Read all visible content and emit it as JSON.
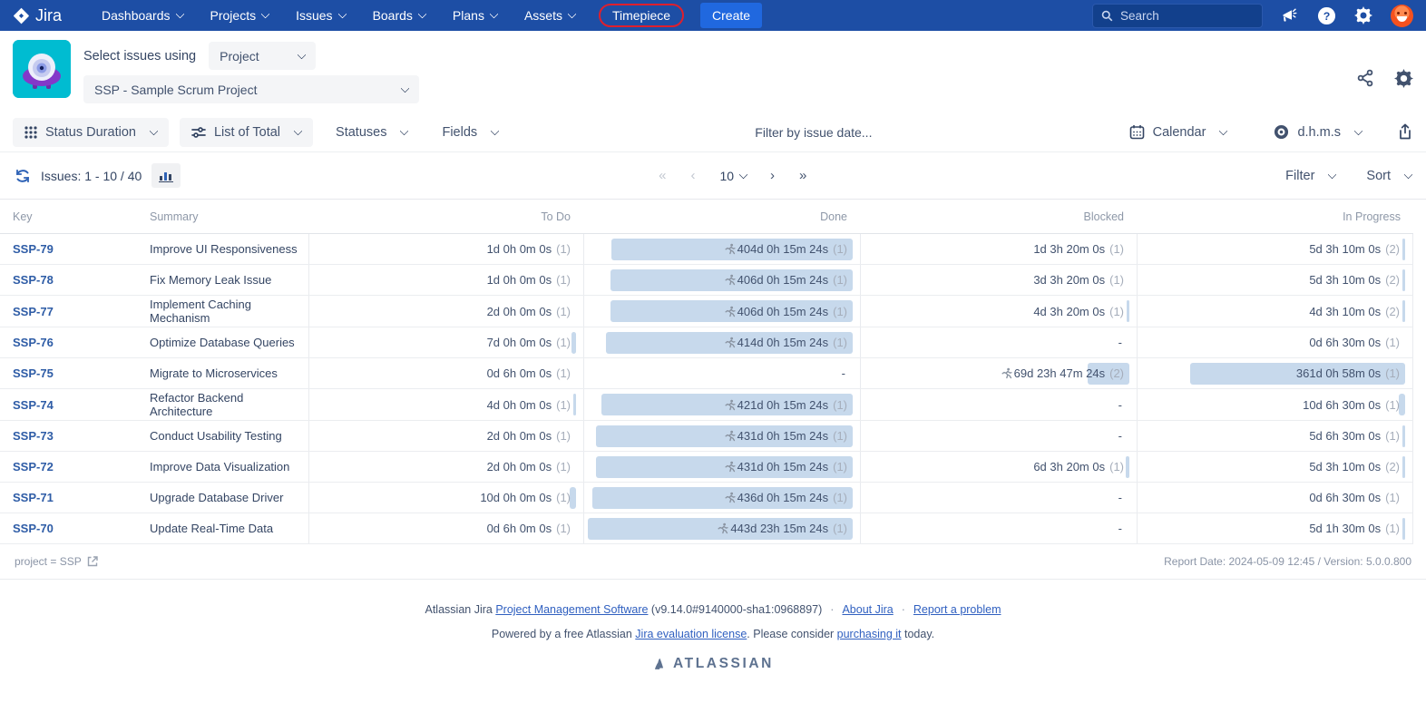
{
  "nav": {
    "brand": "Jira",
    "items": [
      {
        "label": "Dashboards",
        "chevron": true
      },
      {
        "label": "Projects",
        "chevron": true
      },
      {
        "label": "Issues",
        "chevron": true
      },
      {
        "label": "Boards",
        "chevron": true
      },
      {
        "label": "Plans",
        "chevron": true
      },
      {
        "label": "Assets",
        "chevron": true
      },
      {
        "label": "Timepiece",
        "chevron": false,
        "highlighted": true
      }
    ],
    "create_label": "Create",
    "search_placeholder": "Search",
    "annotation_color": "#DF1F2D"
  },
  "header": {
    "select_issues_label": "Select issues using",
    "mode_value": "Project",
    "project_value": "SSP - Sample Scrum Project"
  },
  "toolbar": {
    "report_type": "Status Duration",
    "list_mode": "List of Total",
    "statuses_label": "Statuses",
    "fields_label": "Fields",
    "date_filter_placeholder": "Filter by issue date...",
    "calendar_label": "Calendar",
    "format_label": "d.h.m.s"
  },
  "pagination": {
    "issues_label": "Issues: 1 - 10 / 40",
    "first": "«",
    "prev": "‹",
    "page_size": "10",
    "next": "›",
    "last": "»",
    "filter_label": "Filter",
    "sort_label": "Sort"
  },
  "table": {
    "columns": [
      "Key",
      "Summary",
      "To Do",
      "Done",
      "Blocked",
      "In Progress"
    ],
    "bar_color": "#C7D9EC",
    "max_days": 444,
    "rows": [
      {
        "key": "SSP-79",
        "summary": "Improve UI Responsiveness",
        "todo": {
          "text": "1d 0h 0m 0s",
          "count": "(1)",
          "days": 1.0
        },
        "done": {
          "text": "404d 0h 15m 24s",
          "count": "(1)",
          "days": 404.0,
          "runner": true
        },
        "blocked": {
          "text": "1d 3h 20m 0s",
          "count": "(1)",
          "days": 1.14
        },
        "inprogress": {
          "text": "5d 3h 10m 0s",
          "count": "(2)",
          "days": 5.13
        }
      },
      {
        "key": "SSP-78",
        "summary": "Fix Memory Leak Issue",
        "todo": {
          "text": "1d 0h 0m 0s",
          "count": "(1)",
          "days": 1.0
        },
        "done": {
          "text": "406d 0h 15m 24s",
          "count": "(1)",
          "days": 406.0,
          "runner": true
        },
        "blocked": {
          "text": "3d 3h 20m 0s",
          "count": "(1)",
          "days": 3.14
        },
        "inprogress": {
          "text": "5d 3h 10m 0s",
          "count": "(2)",
          "days": 5.13
        }
      },
      {
        "key": "SSP-77",
        "summary": "Implement Caching\nMechanism",
        "todo": {
          "text": "2d 0h 0m 0s",
          "count": "(1)",
          "days": 2.0
        },
        "done": {
          "text": "406d 0h 15m 24s",
          "count": "(1)",
          "days": 406.0,
          "runner": true
        },
        "blocked": {
          "text": "4d 3h 20m 0s",
          "count": "(1)",
          "days": 4.14
        },
        "inprogress": {
          "text": "4d 3h 10m 0s",
          "count": "(2)",
          "days": 4.13
        }
      },
      {
        "key": "SSP-76",
        "summary": "Optimize Database Queries",
        "todo": {
          "text": "7d 0h 0m 0s",
          "count": "(1)",
          "days": 7.0
        },
        "done": {
          "text": "414d 0h 15m 24s",
          "count": "(1)",
          "days": 414.0,
          "runner": true
        },
        "blocked": {
          "text": "-"
        },
        "inprogress": {
          "text": "0d 6h 30m 0s",
          "count": "(1)",
          "days": 0.27
        }
      },
      {
        "key": "SSP-75",
        "summary": "Migrate to Microservices",
        "todo": {
          "text": "0d 6h 0m 0s",
          "count": "(1)",
          "days": 0.25
        },
        "done": {
          "text": "-"
        },
        "blocked": {
          "text": "69d 23h 47m 24s",
          "count": "(2)",
          "days": 70.0,
          "runner": true
        },
        "inprogress": {
          "text": "361d 0h 58m 0s",
          "count": "(1)",
          "days": 361.04
        }
      },
      {
        "key": "SSP-74",
        "summary": "Refactor Backend Architecture",
        "todo": {
          "text": "4d 0h 0m 0s",
          "count": "(1)",
          "days": 4.0
        },
        "done": {
          "text": "421d 0h 15m 24s",
          "count": "(1)",
          "days": 421.0,
          "runner": true
        },
        "blocked": {
          "text": "-"
        },
        "inprogress": {
          "text": "10d 6h 30m 0s",
          "count": "(1)",
          "days": 10.27
        }
      },
      {
        "key": "SSP-73",
        "summary": "Conduct Usability Testing",
        "todo": {
          "text": "2d 0h 0m 0s",
          "count": "(1)",
          "days": 2.0
        },
        "done": {
          "text": "431d 0h 15m 24s",
          "count": "(1)",
          "days": 431.0,
          "runner": true
        },
        "blocked": {
          "text": "-"
        },
        "inprogress": {
          "text": "5d 6h 30m 0s",
          "count": "(1)",
          "days": 5.27
        }
      },
      {
        "key": "SSP-72",
        "summary": "Improve Data Visualization",
        "todo": {
          "text": "2d 0h 0m 0s",
          "count": "(1)",
          "days": 2.0
        },
        "done": {
          "text": "431d 0h 15m 24s",
          "count": "(1)",
          "days": 431.0,
          "runner": true
        },
        "blocked": {
          "text": "6d 3h 20m 0s",
          "count": "(1)",
          "days": 6.14
        },
        "inprogress": {
          "text": "5d 3h 10m 0s",
          "count": "(2)",
          "days": 5.13
        }
      },
      {
        "key": "SSP-71",
        "summary": "Upgrade Database Driver",
        "todo": {
          "text": "10d 0h 0m 0s",
          "count": "(1)",
          "days": 10.0
        },
        "done": {
          "text": "436d 0h 15m 24s",
          "count": "(1)",
          "days": 436.0,
          "runner": true
        },
        "blocked": {
          "text": "-"
        },
        "inprogress": {
          "text": "0d 6h 30m 0s",
          "count": "(1)",
          "days": 0.27
        }
      },
      {
        "key": "SSP-70",
        "summary": "Update Real-Time Data",
        "todo": {
          "text": "0d 6h 0m 0s",
          "count": "(1)",
          "days": 0.25
        },
        "done": {
          "text": "443d 23h 15m 24s",
          "count": "(1)",
          "days": 443.97,
          "runner": true
        },
        "blocked": {
          "text": "-"
        },
        "inprogress": {
          "text": "5d 1h 30m 0s",
          "count": "(1)",
          "days": 5.06
        }
      }
    ]
  },
  "meta": {
    "jql": "project = SSP",
    "report_info": "Report Date: 2024-05-09 12:45 / Version: 5.0.0.800"
  },
  "footer": {
    "line1": [
      {
        "t": "Atlassian Jira "
      },
      {
        "t": "Project Management Software",
        "link": true
      },
      {
        "t": " (v9.14.0#9140000-sha1:0968897)"
      },
      {
        "t": "·",
        "sep": true
      },
      {
        "t": "About Jira",
        "link": true
      },
      {
        "t": "·",
        "sep": true
      },
      {
        "t": "Report a problem",
        "link": true
      }
    ],
    "line2": [
      {
        "t": "Powered by a free Atlassian "
      },
      {
        "t": "Jira evaluation license",
        "link": true
      },
      {
        "t": ". Please consider "
      },
      {
        "t": "purchasing it",
        "link": true
      },
      {
        "t": " today."
      }
    ],
    "logo_text": "ATLASSIAN"
  }
}
